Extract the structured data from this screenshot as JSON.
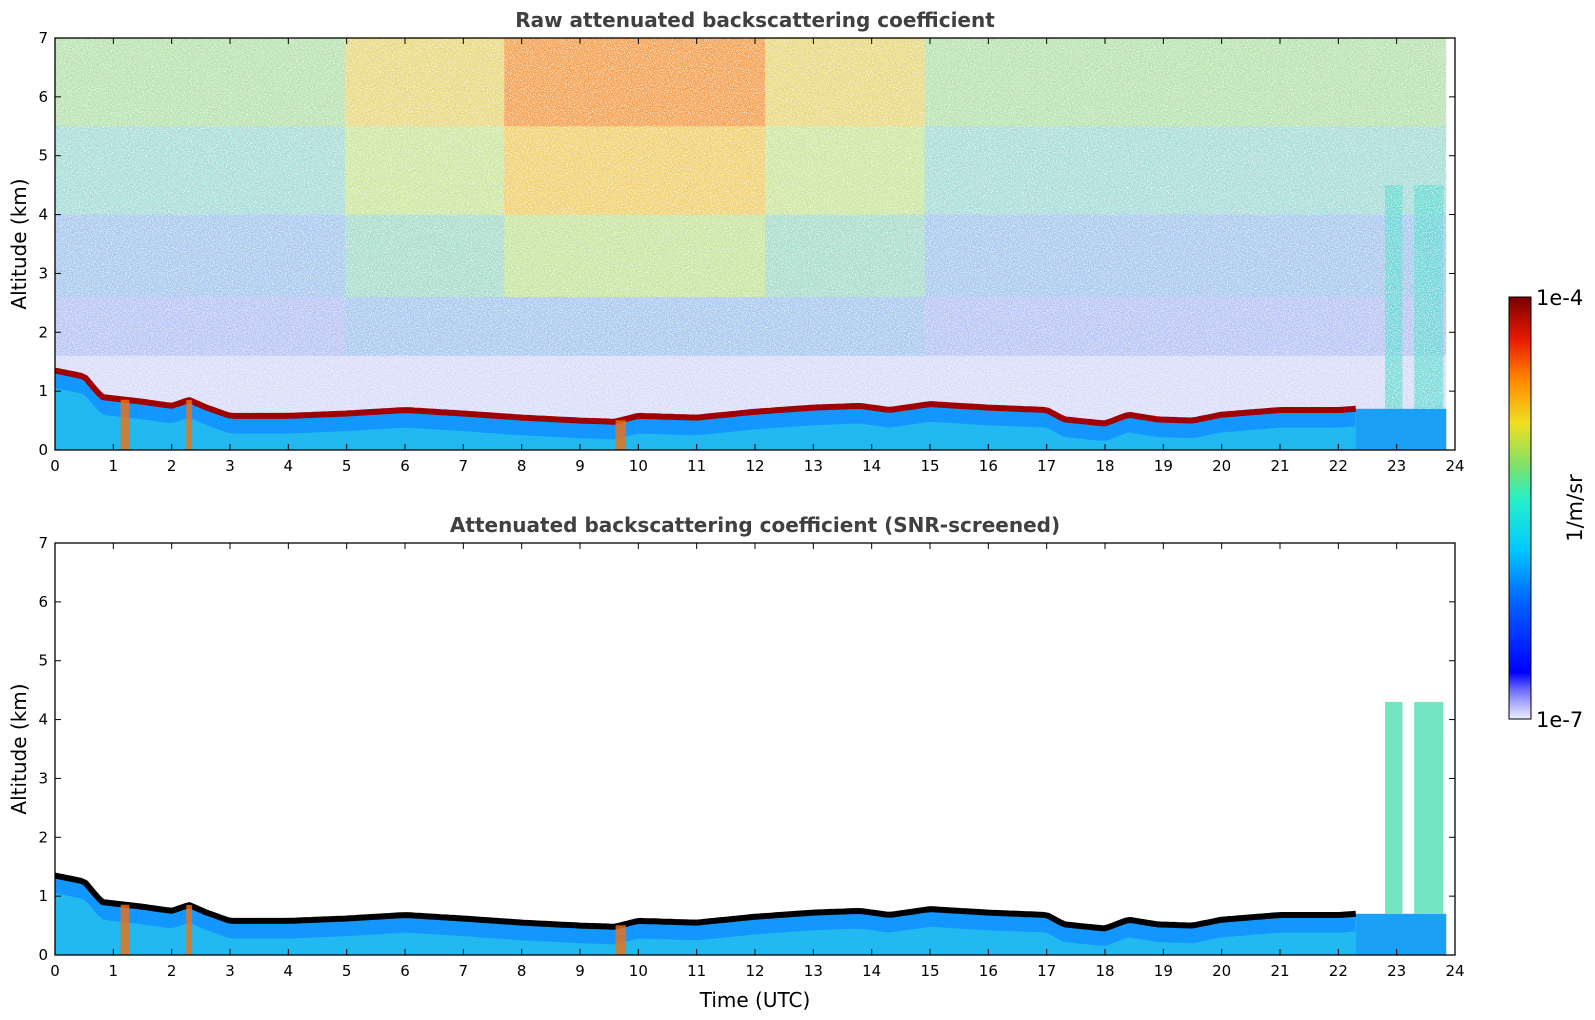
{
  "chart_data": [
    {
      "type": "heatmap",
      "title": "Raw attenuated backscattering coefficient",
      "xlabel": "",
      "ylabel": "Altitude (km)",
      "xlim": [
        0,
        24
      ],
      "ylim": [
        0,
        7
      ],
      "xticks": [
        0,
        1,
        2,
        3,
        4,
        5,
        6,
        7,
        8,
        9,
        10,
        11,
        12,
        13,
        14,
        15,
        16,
        17,
        18,
        19,
        20,
        21,
        22,
        23,
        24
      ],
      "yticks": [
        0,
        1,
        2,
        3,
        4,
        5,
        6,
        7
      ],
      "data_end_hour": 23.85,
      "boundary_layer_top_km": [
        [
          0.0,
          1.35
        ],
        [
          0.5,
          1.25
        ],
        [
          0.8,
          0.9
        ],
        [
          1.5,
          0.82
        ],
        [
          2.0,
          0.75
        ],
        [
          2.3,
          0.85
        ],
        [
          2.6,
          0.72
        ],
        [
          3.0,
          0.58
        ],
        [
          4.0,
          0.58
        ],
        [
          5.0,
          0.62
        ],
        [
          6.0,
          0.68
        ],
        [
          7.0,
          0.62
        ],
        [
          8.0,
          0.55
        ],
        [
          9.0,
          0.5
        ],
        [
          9.6,
          0.48
        ],
        [
          10.0,
          0.58
        ],
        [
          11.0,
          0.55
        ],
        [
          12.0,
          0.65
        ],
        [
          13.0,
          0.72
        ],
        [
          13.8,
          0.75
        ],
        [
          14.3,
          0.68
        ],
        [
          15.0,
          0.78
        ],
        [
          16.0,
          0.72
        ],
        [
          17.0,
          0.68
        ],
        [
          17.3,
          0.52
        ],
        [
          18.0,
          0.45
        ],
        [
          18.4,
          0.6
        ],
        [
          18.9,
          0.52
        ],
        [
          19.5,
          0.5
        ],
        [
          20.0,
          0.6
        ],
        [
          21.0,
          0.68
        ],
        [
          22.0,
          0.68
        ],
        [
          22.3,
          0.7
        ]
      ],
      "high_signal_region_hours": [
        5,
        14.8
      ],
      "colorbar": {
        "label": "1/m/sr",
        "min": "1e-7",
        "max": "1e-4",
        "scale": "log",
        "colormap": "jet"
      }
    },
    {
      "type": "heatmap",
      "title": "Attenuated backscattering coefficient (SNR-screened)",
      "xlabel": "Time (UTC)",
      "ylabel": "Altitude (km)",
      "xlim": [
        0,
        24
      ],
      "ylim": [
        0,
        7
      ],
      "xticks": [
        0,
        1,
        2,
        3,
        4,
        5,
        6,
        7,
        8,
        9,
        10,
        11,
        12,
        13,
        14,
        15,
        16,
        17,
        18,
        19,
        20,
        21,
        22,
        23,
        24
      ],
      "yticks": [
        0,
        1,
        2,
        3,
        4,
        5,
        6,
        7
      ],
      "data_end_hour": 23.85,
      "late_plumes": [
        {
          "x_hours": [
            22.8,
            23.1
          ],
          "top_km": 4.3
        },
        {
          "x_hours": [
            23.3,
            23.8
          ],
          "top_km": 4.3
        }
      ],
      "colorbar": {
        "label": "1/m/sr",
        "min": "1e-7",
        "max": "1e-4",
        "scale": "log",
        "colormap": "jet"
      }
    }
  ]
}
